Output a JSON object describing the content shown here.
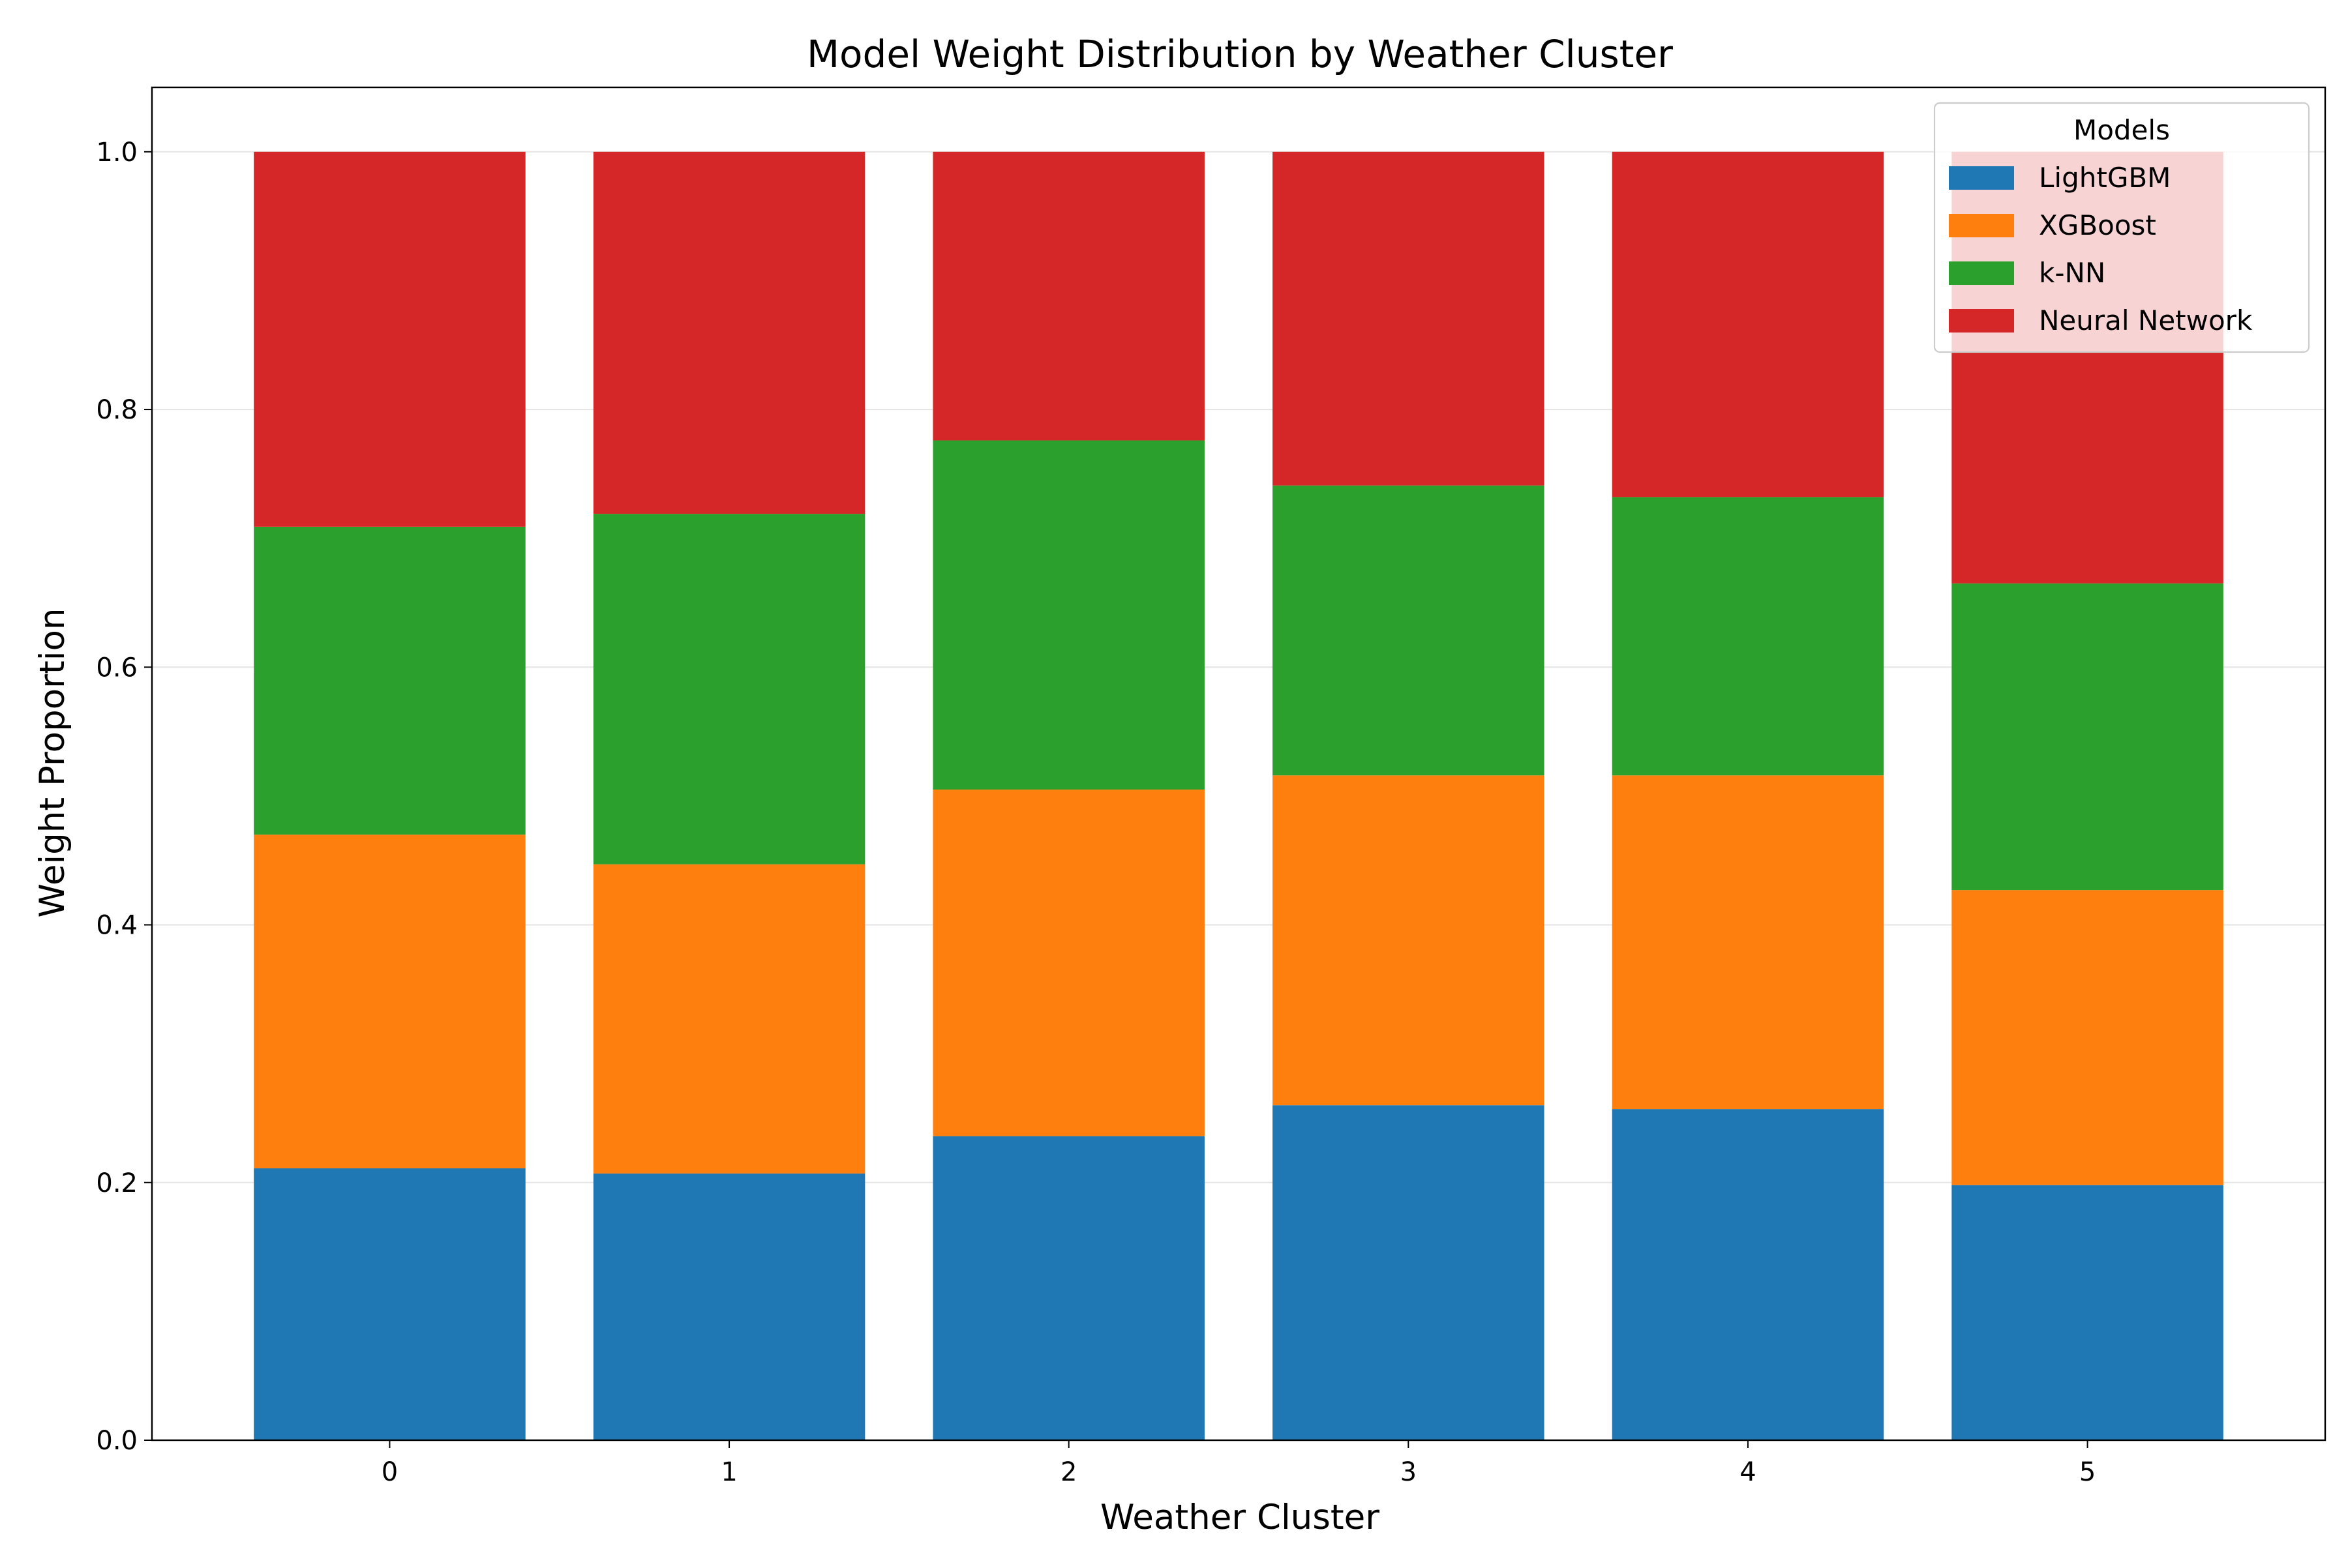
{
  "chart_data": {
    "type": "bar",
    "stacked": true,
    "title": "Model Weight Distribution by Weather Cluster",
    "xlabel": "Weather Cluster",
    "ylabel": "Weight Proportion",
    "categories": [
      "0",
      "1",
      "2",
      "3",
      "4",
      "5"
    ],
    "ylim": [
      0,
      1.05
    ],
    "yticks": [
      "0.0",
      "0.2",
      "0.4",
      "0.6",
      "0.8",
      "1.0"
    ],
    "grid": true,
    "legend": {
      "title": "Models",
      "placement": "top-right"
    },
    "series": [
      {
        "name": "LightGBM",
        "color": "#1f77b4",
        "values": [
          0.211,
          0.207,
          0.236,
          0.26,
          0.257,
          0.198
        ]
      },
      {
        "name": "XGBoost",
        "color": "#ff7f0e",
        "values": [
          0.259,
          0.24,
          0.269,
          0.256,
          0.259,
          0.229
        ]
      },
      {
        "name": "k-NN",
        "color": "#2ca02c",
        "values": [
          0.239,
          0.272,
          0.271,
          0.225,
          0.216,
          0.238
        ]
      },
      {
        "name": "Neural Network",
        "color": "#d62728",
        "values": [
          0.291,
          0.281,
          0.224,
          0.259,
          0.268,
          0.335
        ]
      }
    ]
  }
}
